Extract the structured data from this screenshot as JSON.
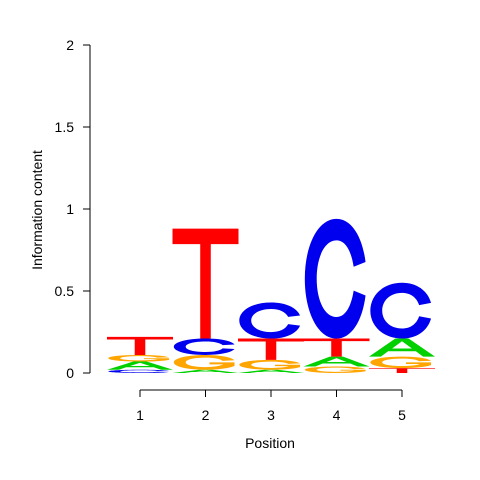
{
  "chart_data": {
    "type": "sequence-logo",
    "xlabel": "Position",
    "ylabel": "Information content",
    "ylim": [
      0,
      2
    ],
    "y_ticks": [
      "0",
      "0.5",
      "1",
      "1.5",
      "2"
    ],
    "y_tick_values": [
      0,
      0.5,
      1,
      1.5,
      2
    ],
    "x_ticks": [
      "1",
      "2",
      "3",
      "4",
      "5"
    ],
    "letter_colors": {
      "A": "#00d000",
      "C": "#0000ee",
      "G": "#ffa500",
      "T": "#ff0000"
    },
    "positions": [
      {
        "position": "1",
        "letters": [
          {
            "letter": "C",
            "height": 0.02
          },
          {
            "letter": "A",
            "height": 0.05
          },
          {
            "letter": "G",
            "height": 0.04
          },
          {
            "letter": "T",
            "height": 0.11
          }
        ]
      },
      {
        "position": "2",
        "letters": [
          {
            "letter": "A",
            "height": 0.02
          },
          {
            "letter": "G",
            "height": 0.09
          },
          {
            "letter": "C",
            "height": 0.1
          },
          {
            "letter": "T",
            "height": 0.67
          }
        ]
      },
      {
        "position": "3",
        "letters": [
          {
            "letter": "A",
            "height": 0.02
          },
          {
            "letter": "G",
            "height": 0.06
          },
          {
            "letter": "T",
            "height": 0.13
          },
          {
            "letter": "C",
            "height": 0.22
          }
        ]
      },
      {
        "position": "4",
        "letters": [
          {
            "letter": "G",
            "height": 0.04
          },
          {
            "letter": "A",
            "height": 0.06
          },
          {
            "letter": "T",
            "height": 0.11
          },
          {
            "letter": "C",
            "height": 0.73
          }
        ]
      },
      {
        "position": "5",
        "letters": [
          {
            "letter": "T",
            "height": 0.03
          },
          {
            "letter": "G",
            "height": 0.07
          },
          {
            "letter": "A",
            "height": 0.11
          },
          {
            "letter": "C",
            "height": 0.34
          }
        ]
      }
    ]
  }
}
